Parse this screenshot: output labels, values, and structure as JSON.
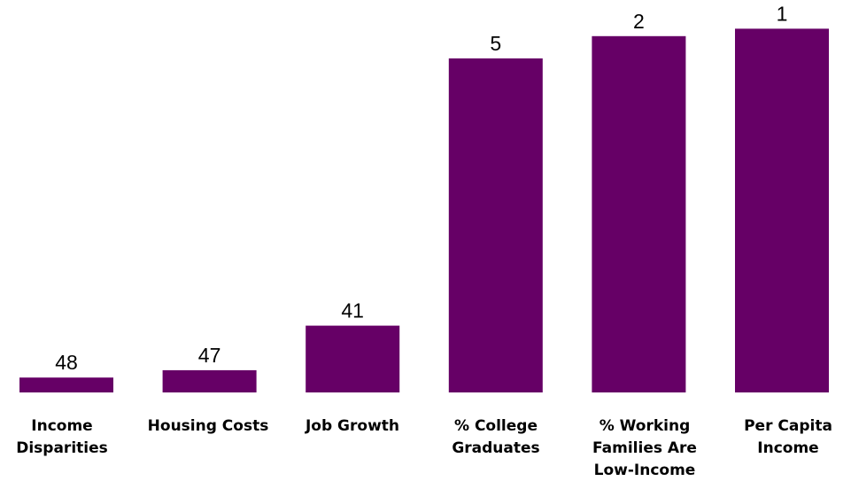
{
  "chart_data": {
    "type": "bar",
    "categories": [
      [
        "Income",
        "Disparities"
      ],
      [
        "Housing Costs"
      ],
      [
        "Job Growth"
      ],
      [
        "% College",
        "Graduates"
      ],
      [
        "%    Working",
        "Families Are",
        "Low-Income"
      ],
      [
        "Per Capita",
        "Income"
      ]
    ],
    "values": [
      48,
      47,
      41,
      5,
      2,
      1
    ],
    "value_labels": [
      "48",
      "47",
      "41",
      "5",
      "2",
      "1"
    ],
    "title": "",
    "xlabel": "",
    "ylabel": "",
    "ylim": [
      50,
      0
    ],
    "y_axis": "reversed (rank 1 is the tallest bar)",
    "grid": false,
    "legend": "none",
    "bar_color": "#660066"
  }
}
